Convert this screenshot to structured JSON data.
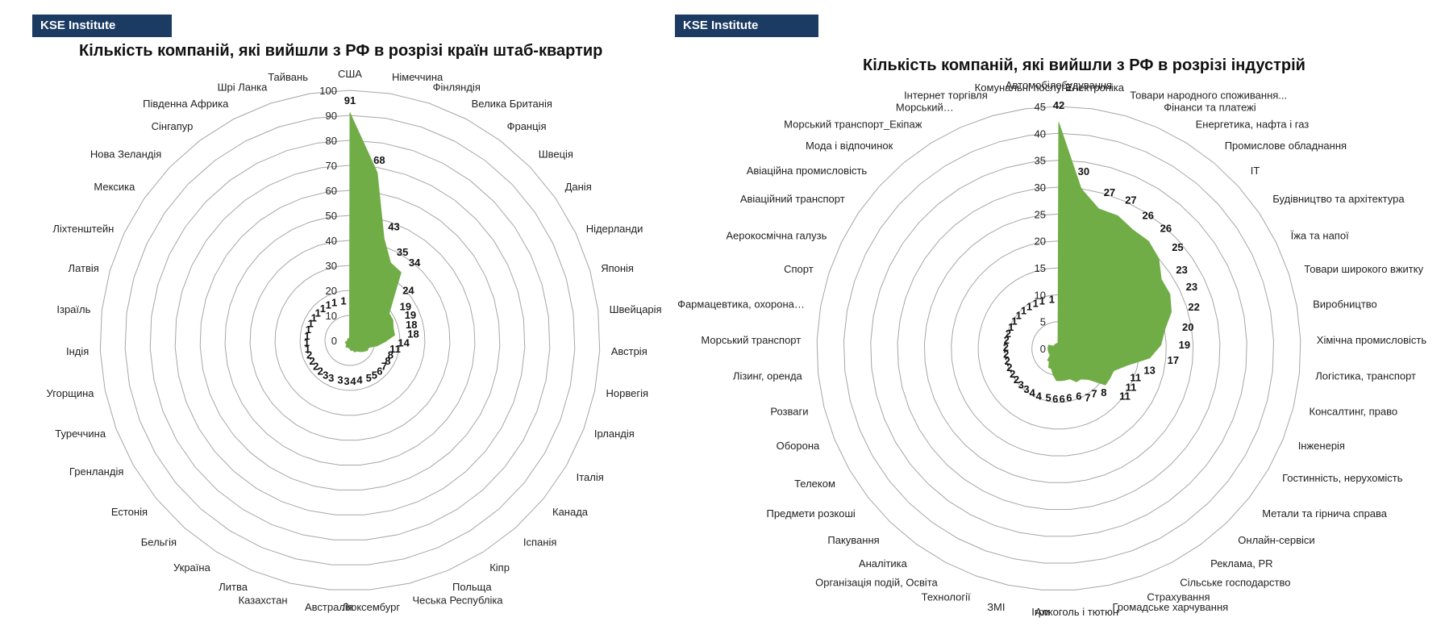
{
  "charts": [
    {
      "badge": "KSE Institute",
      "title": "Кількість компаній, які вийшли з РФ в розрізі країн штаб-квартир"
    },
    {
      "badge": "KSE Institute",
      "title": "Кількість компаній, які вийшли з РФ в розрізі індустрій"
    }
  ],
  "chart_data": [
    {
      "type": "radar",
      "title": "Кількість компаній, які вийшли з РФ в розрізі країн штаб-квартир",
      "rlim": [
        0,
        100
      ],
      "ticks": [
        "0",
        "10",
        "20",
        "30",
        "40",
        "50",
        "60",
        "70",
        "80",
        "90",
        "100"
      ],
      "fill_color": "#70ad47",
      "categories": [
        "США",
        "Німеччина",
        "Фінляндія",
        "Велика Британія",
        "Франція",
        "Швеція",
        "Данія",
        "Нідерланди",
        "Японія",
        "Швейцарія",
        "Австрія",
        "Норвегія",
        "Ірландія",
        "Італія",
        "Канада",
        "Іспанія",
        "Кіпр",
        "Польща",
        "Чеська Республіка",
        "Люксембург",
        "Австралія",
        "Казахстан",
        "Литва",
        "Україна",
        "Бельгія",
        "Естонія",
        "Гренландія",
        "Туреччина",
        "Угорщина",
        "Індія",
        "Ізраїль",
        "Латвія",
        "Ліхтенштейн",
        "Мексика",
        "Нова Зеландія",
        "Сінгапур",
        "Південна Африка",
        "Шрі Ланка",
        "Тайвань"
      ],
      "values": [
        91,
        68,
        43,
        35,
        34,
        24,
        19,
        19,
        18,
        18,
        14,
        11,
        8,
        8,
        7,
        6,
        5,
        5,
        4,
        4,
        3,
        3,
        3,
        3,
        2,
        2,
        2,
        2,
        1,
        1,
        1,
        1,
        1,
        1,
        1,
        1,
        1,
        1,
        1
      ],
      "value_labels": [
        "91",
        "68",
        "43",
        "35",
        "34",
        "24",
        "19",
        "19",
        "18",
        "18",
        "14",
        "11",
        "8",
        "8",
        "7",
        "6",
        "5",
        "5",
        "4",
        "4",
        "3",
        "3",
        "3",
        "3",
        "2",
        "2",
        "2",
        "2",
        "1",
        "1",
        "1",
        "1",
        "1",
        "1",
        "1",
        "1",
        "1",
        "1",
        "1"
      ]
    },
    {
      "type": "radar",
      "title": "Кількість компаній, які вийшли з РФ в розрізі індустрій",
      "rlim": [
        0,
        45
      ],
      "ticks": [
        "0",
        "5",
        "10",
        "15",
        "20",
        "25",
        "30",
        "35",
        "40",
        "45"
      ],
      "fill_color": "#70ad47",
      "categories": [
        "Автомобілебудування",
        "Електроніка",
        "Товари народного споживання...",
        "Фінанси та платежі",
        "Енергетика, нафта  і газ",
        "Промислове обладнання",
        "IT",
        "Будівництво та архітектура",
        "Їжа та напої",
        "Товари широкого вжитку",
        "Виробництво",
        "Хімічна промисловість",
        "Логістика, транспорт",
        "Консалтинг, право",
        "Інженерія",
        "Гостинність, нерухомість",
        "Метали та гірнича справа",
        "Онлайн-сервіси",
        "Реклама, PR",
        "Сільське господарство",
        "Страхування",
        "Громадське харчування",
        "Алкоголь і тютюн",
        "Ігри",
        "ЗМІ",
        "Технології",
        "Організація подій, Освіта",
        "Аналітика",
        "Пакування",
        "Предмети розкоші",
        "Телеком",
        "Оборона",
        "Розваги",
        "Лізинг, оренда",
        "Морський транспорт",
        "Фармацевтика, охорона…",
        "Спорт",
        "Аерокосмічна галузь",
        "Авіаційний транспорт",
        "Авіаційна промисловість",
        "Мода і відпочинок",
        "Морський транспорт_Екіпаж",
        "Морський…",
        "Інтернет торгівля",
        "Комунальні послуги"
      ],
      "values": [
        42,
        30,
        27,
        27,
        26,
        26,
        25,
        23,
        23,
        22,
        20,
        19,
        17,
        13,
        11,
        11,
        11,
        8,
        7,
        7,
        6,
        6,
        6,
        6,
        5,
        4,
        4,
        3,
        3,
        2,
        2,
        2,
        2,
        2,
        2,
        2,
        2,
        1,
        1,
        1,
        1,
        1,
        1,
        1,
        1
      ],
      "value_labels": [
        "42",
        "30",
        "27",
        "27",
        "26",
        "26",
        "25",
        "23",
        "23",
        "22",
        "20",
        "19",
        "17",
        "13",
        "11",
        "11",
        "11",
        "8",
        "7",
        "7",
        "6",
        "6",
        "6",
        "6",
        "5",
        "4",
        "4",
        "3",
        "3",
        "2",
        "2",
        "2",
        "2",
        "2",
        "2",
        "2",
        "2",
        "1",
        "1",
        "1",
        "1",
        "1",
        "1",
        "1",
        "1"
      ]
    }
  ]
}
